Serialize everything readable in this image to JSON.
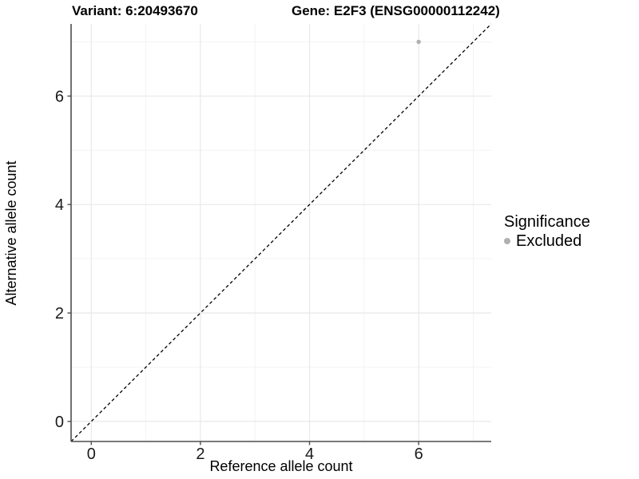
{
  "chart_data": {
    "type": "scatter",
    "title_variant": "Variant: 6:20493670",
    "title_gene": "Gene: E2F3 (ENSG00000112242)",
    "xlabel": "Reference allele count",
    "ylabel": "Alternative allele count",
    "xlim": [
      -0.37,
      7.33
    ],
    "ylim": [
      -0.37,
      7.33
    ],
    "x_ticks": [
      0,
      2,
      4,
      6
    ],
    "y_ticks": [
      0,
      2,
      4,
      6
    ],
    "x_minor_gridlines": [
      1,
      3,
      5,
      7
    ],
    "y_minor_gridlines": [
      1,
      3,
      5,
      7
    ],
    "grid": true,
    "points": [
      {
        "x": 6,
        "y": 7,
        "significance": "Excluded"
      }
    ],
    "reference_line": {
      "type": "identity",
      "x1": -0.37,
      "y1": -0.37,
      "x2": 7.33,
      "y2": 7.33,
      "style": "dashed",
      "color": "#000000"
    },
    "legend": {
      "position": "right",
      "title": "Significance",
      "items": [
        {
          "label": "Excluded",
          "color": "#b0b0b0"
        }
      ]
    },
    "colors": {
      "background": "#ffffff",
      "grid_major": "#e8e8e8",
      "grid_minor": "#f3f3f3",
      "axis_line": "#4d4d4d",
      "tick_mark": "#4d4d4d",
      "tick_label": "#1a1a1a",
      "point_excluded": "#b0b0b0",
      "reference_line": "#000000"
    }
  }
}
